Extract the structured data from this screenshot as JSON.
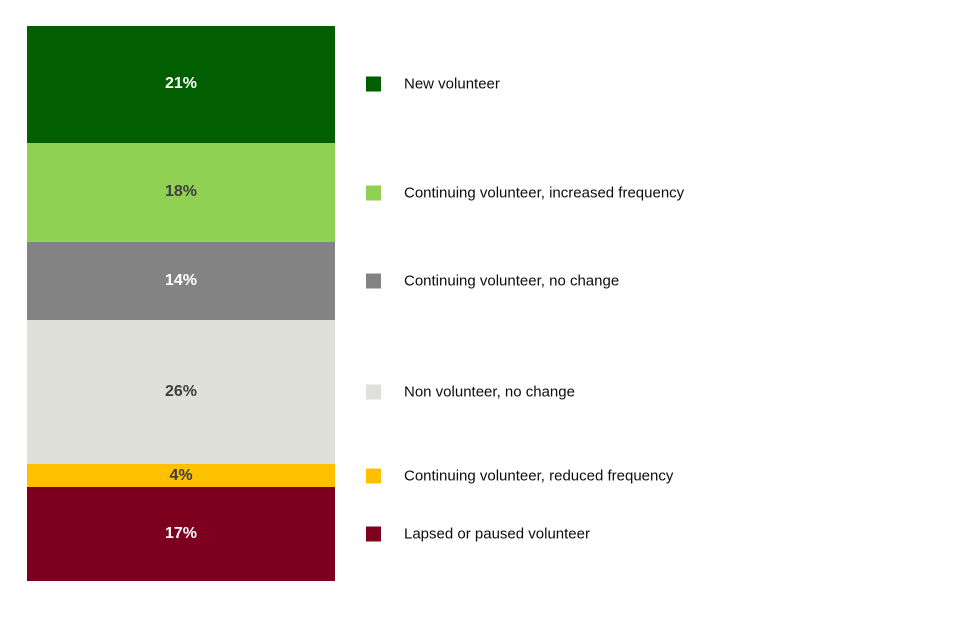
{
  "chart_data": {
    "type": "bar",
    "subtype": "single-stacked-column",
    "title": "",
    "xlabel": "",
    "ylabel": "",
    "total": 100,
    "legend_position": "right",
    "grid": false,
    "background_color": "#ffffff",
    "segments": [
      {
        "label": "New volunteer",
        "value": 21,
        "value_label": "21%",
        "color": "#015E01",
        "text_color": "#FFFFFF"
      },
      {
        "label": "Continuing volunteer, increased frequency",
        "value": 18,
        "value_label": "18%",
        "color": "#90D052",
        "text_color": "#3E3E3E"
      },
      {
        "label": "Continuing volunteer, no change",
        "value": 14,
        "value_label": "14%",
        "color": "#838383",
        "text_color": "#FFFFFF"
      },
      {
        "label": "Non volunteer, no change",
        "value": 26,
        "value_label": "26%",
        "color": "#DFE0DA",
        "text_color": "#3E3E3E"
      },
      {
        "label": "Continuing volunteer, reduced frequency",
        "value": 4,
        "value_label": "4%",
        "color": "#FFC000",
        "text_color": "#363C47"
      },
      {
        "label": "Lapsed or paused volunteer",
        "value": 17,
        "value_label": "17%",
        "color": "#7E001F",
        "text_color": "#FFFFFF"
      }
    ]
  }
}
